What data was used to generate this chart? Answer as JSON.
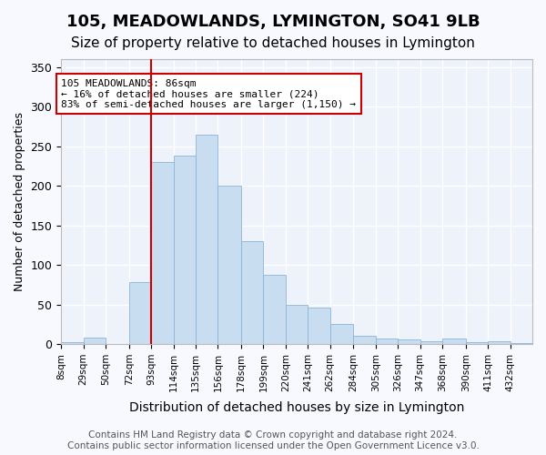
{
  "title": "105, MEADOWLANDS, LYMINGTON, SO41 9LB",
  "subtitle": "Size of property relative to detached houses in Lymington",
  "xlabel": "Distribution of detached houses by size in Lymington",
  "ylabel": "Number of detached properties",
  "bar_color": "#c9ddf0",
  "bar_edge_color": "#8ab4d8",
  "background_color": "#eef2fb",
  "grid_color": "#ffffff",
  "tick_labels": [
    "8sqm",
    "29sqm",
    "50sqm",
    "72sqm",
    "93sqm",
    "114sqm",
    "135sqm",
    "156sqm",
    "178sqm",
    "199sqm",
    "220sqm",
    "241sqm",
    "262sqm",
    "284sqm",
    "305sqm",
    "326sqm",
    "347sqm",
    "368sqm",
    "390sqm",
    "411sqm",
    "432sqm"
  ],
  "bar_heights": [
    2,
    8,
    0,
    78,
    230,
    238,
    265,
    200,
    130,
    88,
    50,
    46,
    25,
    10,
    7,
    6,
    4,
    7,
    2,
    3,
    1
  ],
  "bin_edges": [
    8,
    29,
    50,
    72,
    93,
    114,
    135,
    156,
    178,
    199,
    220,
    241,
    262,
    284,
    305,
    326,
    347,
    368,
    390,
    411,
    432,
    453
  ],
  "vline_x": 93,
  "vline_color": "#cc0000",
  "annotation_text": "105 MEADOWLANDS: 86sqm\n← 16% of detached houses are smaller (224)\n83% of semi-detached houses are larger (1,150) →",
  "annotation_box_color": "#ffffff",
  "annotation_box_edge": "#cc0000",
  "ylim": [
    0,
    360
  ],
  "yticks": [
    0,
    50,
    100,
    150,
    200,
    250,
    300,
    350
  ],
  "footer_text": "Contains HM Land Registry data © Crown copyright and database right 2024.\nContains public sector information licensed under the Open Government Licence v3.0.",
  "title_fontsize": 13,
  "subtitle_fontsize": 11,
  "xlabel_fontsize": 10,
  "ylabel_fontsize": 9,
  "footer_fontsize": 7.5
}
